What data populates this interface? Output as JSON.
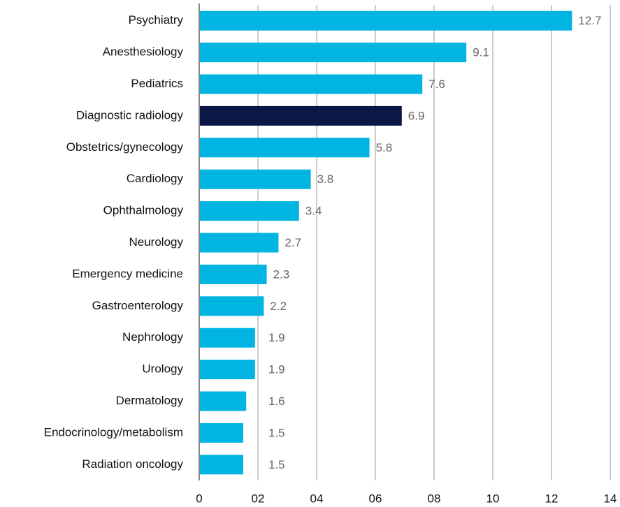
{
  "chart_data": {
    "type": "barh",
    "categories": [
      "Psychiatry",
      "Anesthesiology",
      "Pediatrics",
      "Diagnostic radiology",
      "Obstetrics/gynecology",
      "Cardiology",
      "Ophthalmology",
      "Neurology",
      "Emergency medicine",
      "Gastroenterology",
      "Nephrology",
      "Urology",
      "Dermatology",
      "Endocrinology/metabolism",
      "Radiation oncology"
    ],
    "values": [
      12.7,
      9.1,
      7.6,
      6.9,
      5.8,
      3.8,
      3.4,
      2.7,
      2.3,
      2.2,
      1.9,
      1.9,
      1.6,
      1.5,
      1.5
    ],
    "colors": [
      "#00b5e2",
      "#00b5e2",
      "#00b5e2",
      "#0b1747",
      "#00b5e2",
      "#00b5e2",
      "#00b5e2",
      "#00b5e2",
      "#00b5e2",
      "#00b5e2",
      "#00b5e2",
      "#00b5e2",
      "#00b5e2",
      "#00b5e2",
      "#00b5e2"
    ],
    "xlim": [
      0,
      14
    ],
    "xticks": [
      0,
      {
        "value": 2,
        "label": "02"
      },
      {
        "value": 4,
        "label": "04"
      },
      {
        "value": 6,
        "label": "06"
      },
      {
        "value": 8,
        "label": "08"
      },
      10,
      12,
      14
    ],
    "grid": true
  }
}
